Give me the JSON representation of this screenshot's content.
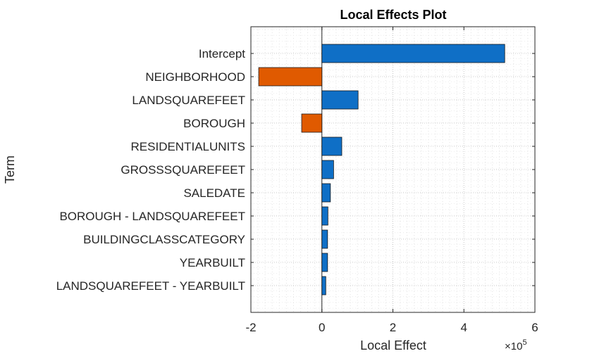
{
  "chart_data": {
    "type": "bar",
    "orientation": "horizontal",
    "title": "Local Effects Plot",
    "xlabel": "Local Effect",
    "ylabel": "Term",
    "x_exponent_label": "×10",
    "x_exponent_power": "5",
    "xlim": [
      -2,
      6
    ],
    "xticks": [
      "-2",
      "0",
      "2",
      "4",
      "6"
    ],
    "xtick_values": [
      -2,
      0,
      2,
      4,
      6
    ],
    "grid": true,
    "categories": [
      "Intercept",
      "NEIGHBORHOOD",
      "LANDSQUAREFEET",
      "BOROUGH",
      "RESIDENTIALUNITS",
      "GROSSSQUAREFEET",
      "SALEDATE",
      "BOROUGH - LANDSQUAREFEET",
      "BUILDINGCLASSCATEGORY",
      "YEARBUILT",
      "LANDSQUAREFEET - YEARBUILT"
    ],
    "values": [
      5.15,
      -1.78,
      1.02,
      -0.57,
      0.56,
      0.33,
      0.24,
      0.17,
      0.16,
      0.16,
      0.11
    ],
    "colors": {
      "positive": "#0f6fc6",
      "negative": "#e05a00"
    }
  }
}
